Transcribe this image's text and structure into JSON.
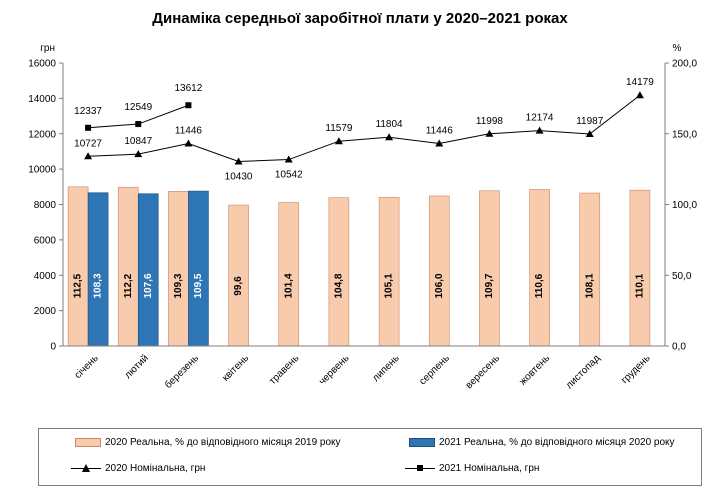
{
  "chart_data": {
    "type": "bar+line",
    "title": "Динаміка середньої заробітної плати у 2020–2021 роках",
    "ylabel_left": "грн",
    "ylabel_right": "%",
    "ylim_left": [
      0,
      16000
    ],
    "ylim_right": [
      0,
      200
    ],
    "yticks_left": [
      "0",
      "2000",
      "4000",
      "6000",
      "8000",
      "10000",
      "12000",
      "14000",
      "16000"
    ],
    "yticks_right": [
      "0,0",
      "50,0",
      "100,0",
      "150,0",
      "200,0"
    ],
    "categories": [
      "січень",
      "лютий",
      "березень",
      "квітень",
      "травень",
      "червень",
      "липень",
      "серпень",
      "вересень",
      "жовтень",
      "листопад",
      "грудень"
    ],
    "bar_series": [
      {
        "name": "2020 Реальна, % до відповідного місяця 2019 року",
        "color": "#f8cbad",
        "values": [
          112.5,
          112.2,
          109.3,
          99.6,
          101.4,
          104.8,
          105.1,
          106.0,
          109.7,
          110.6,
          108.1,
          110.1
        ],
        "labels": [
          "112,5",
          "112,2",
          "109,3",
          "99,6",
          "101,4",
          "104,8",
          "105,1",
          "106,0",
          "109,7",
          "110,6",
          "108,1",
          "110,1"
        ]
      },
      {
        "name": "2021 Реальна, % до відповідного місяця 2020 року",
        "color": "#2e75b6",
        "values": [
          108.3,
          107.6,
          109.5
        ],
        "labels": [
          "108,3",
          "107,6",
          "109,5"
        ]
      }
    ],
    "line_series": [
      {
        "name": "2020 Номінальна, грн",
        "marker": "triangle",
        "values": [
          10727,
          10847,
          11446,
          10430,
          10542,
          11579,
          11804,
          11446,
          11998,
          12174,
          11987,
          14179
        ],
        "labels": [
          "10727",
          "10847",
          "11446",
          "10430",
          "10542",
          "11579",
          "11804",
          "11446",
          "11998",
          "12174",
          "11987",
          "14179"
        ]
      },
      {
        "name": "2021 Номінальна, грн",
        "marker": "square",
        "values": [
          12337,
          12549,
          13612
        ],
        "labels": [
          "12337",
          "12549",
          "13612"
        ]
      }
    ],
    "legend_position": "bottom",
    "grid": false
  }
}
